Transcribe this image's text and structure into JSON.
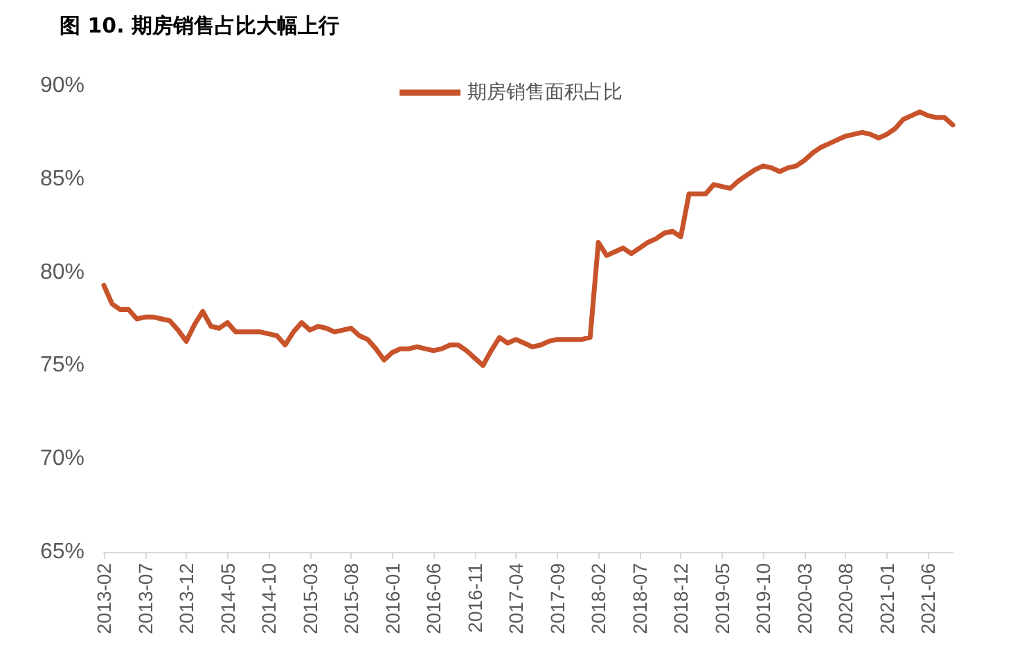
{
  "chart_data": {
    "type": "line",
    "title": "图 10. 期房销售占比大幅上行",
    "categories": [
      "2013-02",
      null,
      null,
      null,
      null,
      "2013-07",
      null,
      null,
      null,
      null,
      "2013-12",
      null,
      null,
      null,
      null,
      "2014-05",
      null,
      null,
      null,
      null,
      "2014-10",
      null,
      null,
      null,
      null,
      "2015-03",
      null,
      null,
      null,
      null,
      "2015-08",
      null,
      null,
      null,
      null,
      "2016-01",
      null,
      null,
      null,
      null,
      "2016-06",
      null,
      null,
      null,
      null,
      "2016-11",
      null,
      null,
      null,
      null,
      "2017-04",
      null,
      null,
      null,
      null,
      "2017-09",
      null,
      null,
      null,
      null,
      "2018-02",
      null,
      null,
      null,
      null,
      "2018-07",
      null,
      null,
      null,
      null,
      "2018-12",
      null,
      null,
      null,
      null,
      "2019-05",
      null,
      null,
      null,
      null,
      "2019-10",
      null,
      null,
      null,
      null,
      "2020-03",
      null,
      null,
      null,
      null,
      "2020-08",
      null,
      null,
      null,
      null,
      "2021-01",
      null,
      null,
      null,
      null,
      "2021-06",
      null,
      null,
      null
    ],
    "series": [
      {
        "name": "期房销售面积占比",
        "color": "#c8532a",
        "values": [
          79.3,
          78.3,
          78.0,
          78.0,
          77.5,
          77.6,
          77.6,
          77.5,
          77.4,
          76.9,
          76.3,
          77.2,
          77.9,
          77.1,
          77.0,
          77.3,
          76.8,
          76.8,
          76.8,
          76.8,
          76.7,
          76.6,
          76.1,
          76.8,
          77.3,
          76.9,
          77.1,
          77.0,
          76.8,
          76.9,
          77.0,
          76.6,
          76.4,
          75.9,
          75.3,
          75.7,
          75.9,
          75.9,
          76.0,
          75.9,
          75.8,
          75.9,
          76.1,
          76.1,
          75.8,
          75.4,
          75.0,
          75.8,
          76.5,
          76.2,
          76.4,
          76.2,
          76.0,
          76.1,
          76.3,
          76.4,
          76.4,
          76.4,
          76.4,
          76.5,
          81.6,
          80.9,
          81.1,
          81.3,
          81.0,
          81.3,
          81.6,
          81.8,
          82.1,
          82.2,
          81.9,
          84.2,
          84.2,
          84.2,
          84.7,
          84.6,
          84.5,
          84.9,
          85.2,
          85.5,
          85.7,
          85.6,
          85.4,
          85.6,
          85.7,
          86.0,
          86.4,
          86.7,
          86.9,
          87.1,
          87.3,
          87.4,
          87.5,
          87.4,
          87.2,
          87.4,
          87.7,
          88.2,
          88.4,
          88.6,
          88.4,
          88.3,
          88.3,
          87.9
        ]
      }
    ],
    "ylim": [
      65,
      90
    ],
    "yticks": [
      {
        "value": 65,
        "label": "65%"
      },
      {
        "value": 70,
        "label": "70%"
      },
      {
        "value": 75,
        "label": "75%"
      },
      {
        "value": 80,
        "label": "80%"
      },
      {
        "value": 85,
        "label": "85%"
      },
      {
        "value": 90,
        "label": "90%"
      }
    ],
    "grid": false,
    "legend": "top",
    "marker": "none",
    "line_style": "solid"
  }
}
